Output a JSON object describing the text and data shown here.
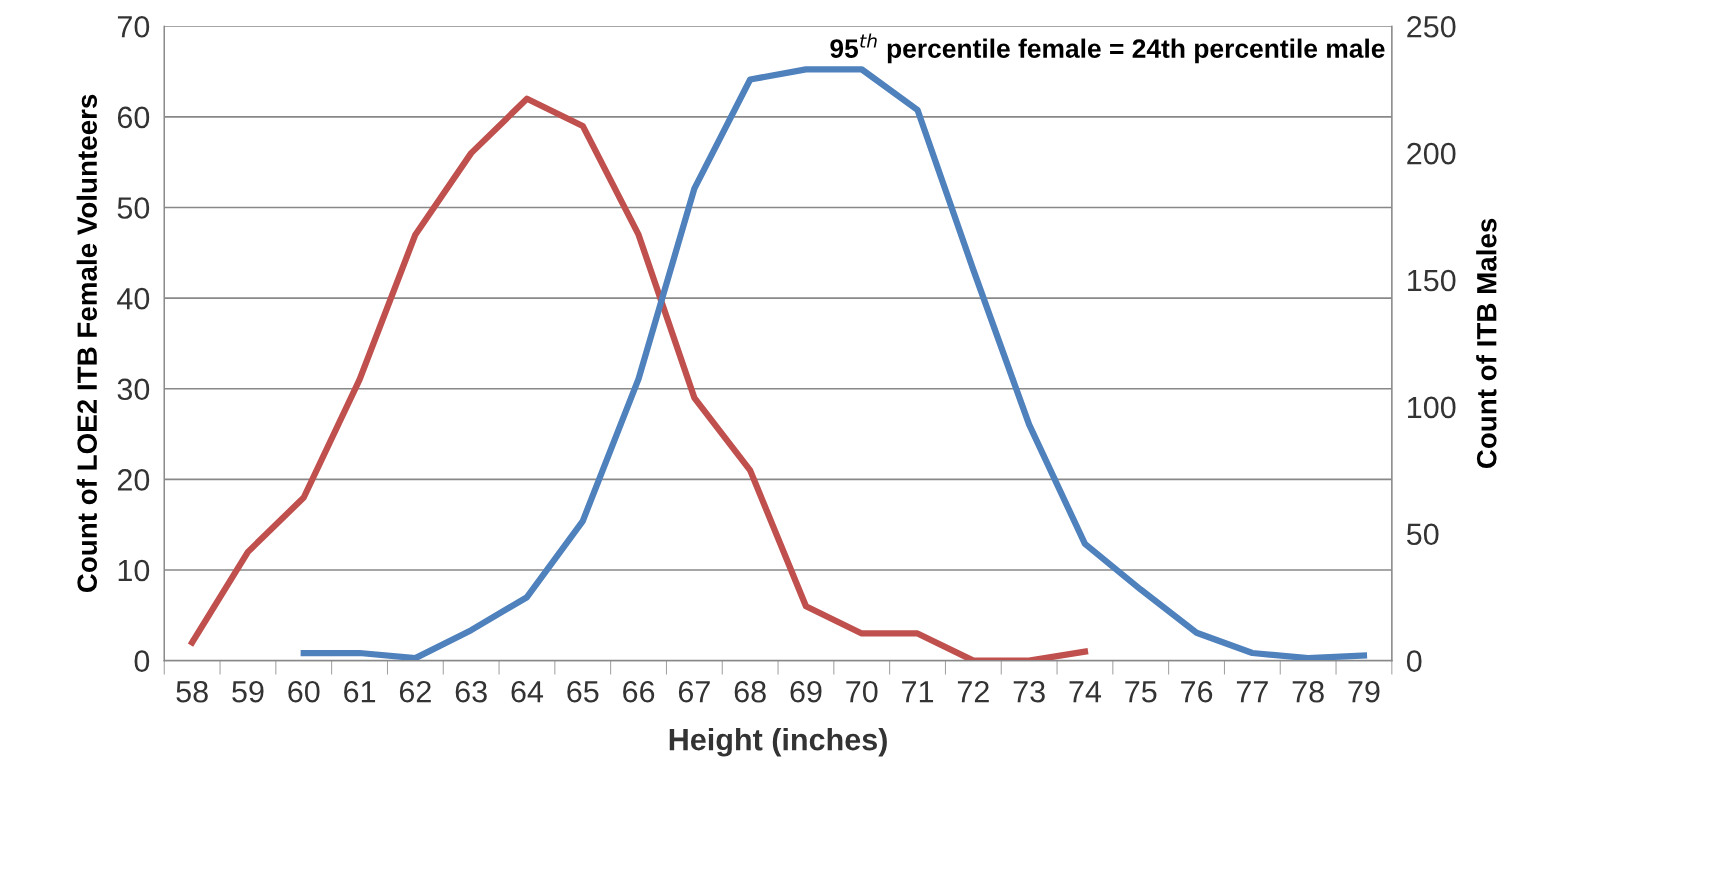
{
  "chart_data": {
    "type": "line",
    "xlabel": "Height (inches)",
    "ylabel": "Count of LOE2 ITB Female Volunteers",
    "y2label": "Count of ITB Males",
    "categories": [
      "58",
      "59",
      "60",
      "61",
      "62",
      "63",
      "64",
      "65",
      "66",
      "67",
      "68",
      "69",
      "70",
      "71",
      "72",
      "73",
      "74",
      "75",
      "76",
      "77",
      "78",
      "79"
    ],
    "series": [
      {
        "color": "#c0504d",
        "values": [
          2,
          12,
          18,
          31,
          47,
          56,
          62,
          59,
          47,
          29,
          21,
          6,
          3,
          3,
          0,
          0,
          1,
          null,
          null,
          null,
          null,
          null
        ]
      },
      {
        "color": "#4f81bd",
        "axis": "y2",
        "values": [
          null,
          null,
          3,
          3,
          1,
          12,
          25,
          55,
          111,
          186,
          229,
          233,
          233,
          217,
          154,
          93,
          46,
          28,
          11,
          3,
          1,
          2
        ]
      }
    ],
    "ylim": [
      0,
      70
    ],
    "yticks": [
      0,
      10,
      20,
      30,
      40,
      50,
      60,
      70
    ],
    "y2lim": [
      0,
      250
    ],
    "y2ticks": [
      0,
      50,
      100,
      150,
      200,
      250
    ],
    "grid": "y",
    "legend": false,
    "marker": "none",
    "line_style": "solid",
    "annotations": [
      "95$^{th}$ percentile female = 24th percentile male"
    ]
  }
}
